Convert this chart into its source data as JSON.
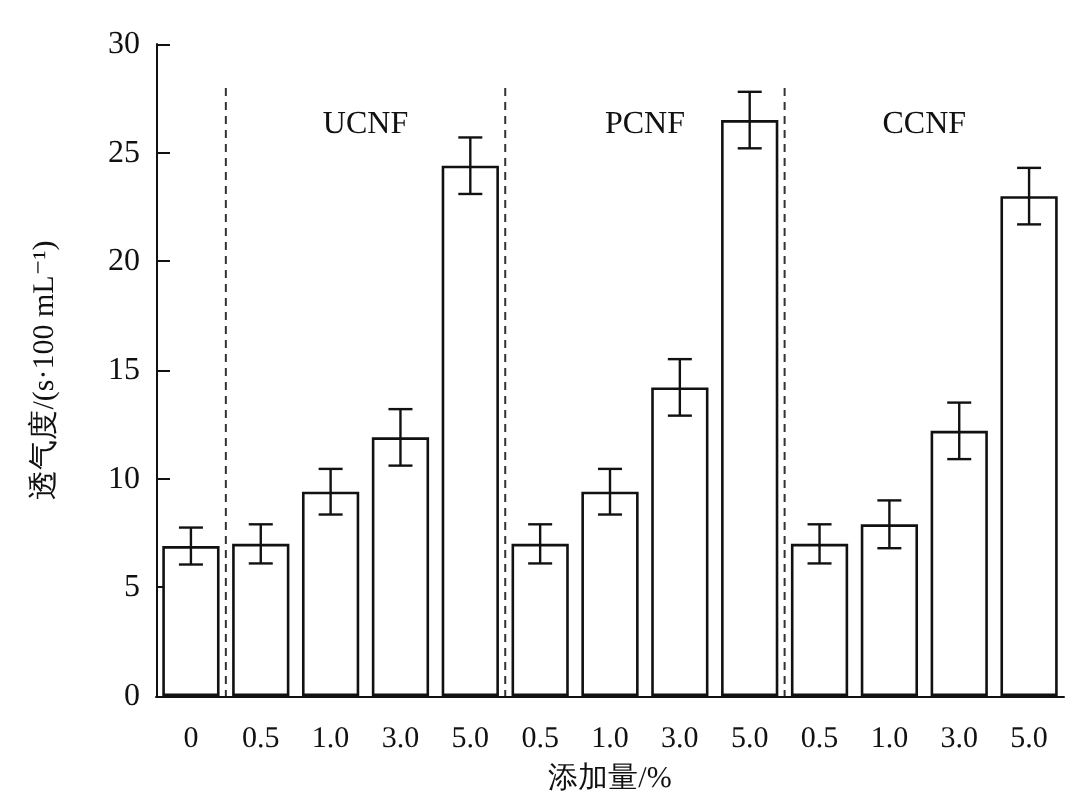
{
  "chart_data": {
    "type": "bar",
    "xlabel": "添加量/%",
    "ylabel": "透气度/(s·100 mL⁻¹)",
    "categories": [
      "0",
      "0.5",
      "1.0",
      "3.0",
      "5.0",
      "0.5",
      "1.0",
      "3.0",
      "5.0",
      "0.5",
      "1.0",
      "3.0",
      "5.0"
    ],
    "values": [
      6.9,
      7.0,
      9.4,
      11.9,
      24.4,
      7.0,
      9.4,
      14.2,
      26.5,
      7.0,
      7.9,
      12.2,
      23.0
    ],
    "errors": [
      0.85,
      0.9,
      1.05,
      1.3,
      1.3,
      0.9,
      1.05,
      1.3,
      1.3,
      0.9,
      1.1,
      1.3,
      1.3
    ],
    "color": "#ffffff",
    "ylim": [
      0,
      30
    ],
    "yticks": [
      0,
      5,
      10,
      15,
      20,
      25,
      30
    ],
    "annotations": [
      "UCNF",
      "PCNF",
      "CCNF"
    ],
    "grid": false
  }
}
